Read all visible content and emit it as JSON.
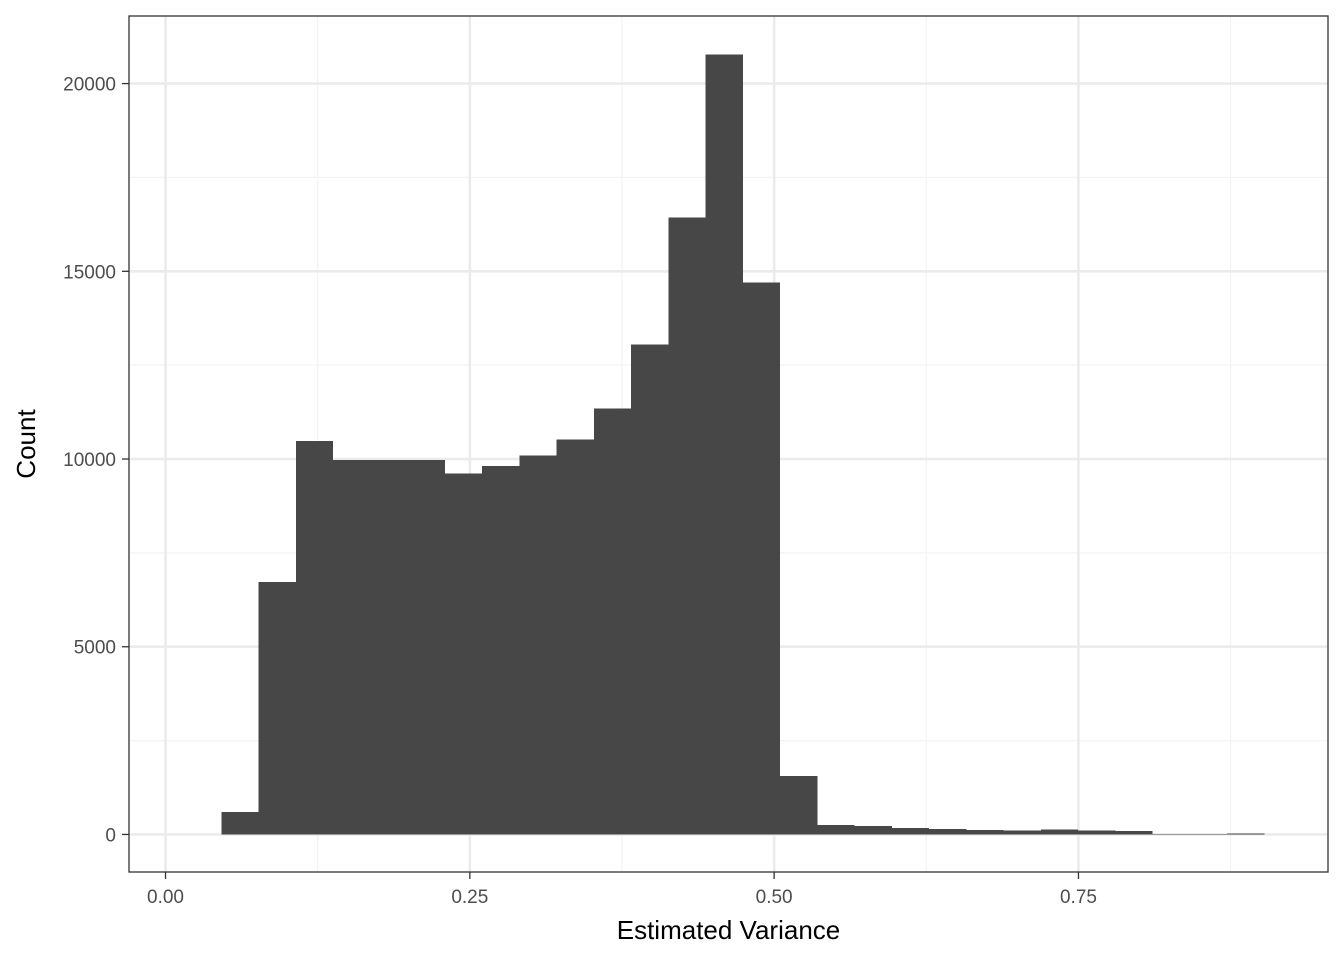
{
  "chart_data": {
    "type": "bar",
    "subtype": "histogram",
    "title": "",
    "xlabel": "Estimated Variance",
    "ylabel": "Count",
    "xlim": [
      -0.03,
      0.955
    ],
    "ylim": [
      -1000,
      21800
    ],
    "x_ticks": [
      {
        "value": 0.0,
        "label": "0.00"
      },
      {
        "value": 0.25,
        "label": "0.25"
      },
      {
        "value": 0.5,
        "label": "0.50"
      },
      {
        "value": 0.75,
        "label": "0.75"
      }
    ],
    "y_ticks": [
      {
        "value": 0,
        "label": "0"
      },
      {
        "value": 5000,
        "label": "5000"
      },
      {
        "value": 10000,
        "label": "10000"
      },
      {
        "value": 15000,
        "label": "15000"
      },
      {
        "value": 20000,
        "label": "20000"
      }
    ],
    "x_minor_ticks": [
      0.125,
      0.375,
      0.625,
      0.875
    ],
    "y_minor_ticks": [
      2500,
      7500,
      12500,
      17500
    ],
    "bin_width": 0.0306,
    "bins": [
      {
        "x0": -0.0153,
        "x1": 0.0153,
        "count": 0
      },
      {
        "x0": 0.0153,
        "x1": 0.0459,
        "count": 5
      },
      {
        "x0": 0.0459,
        "x1": 0.0765,
        "count": 600
      },
      {
        "x0": 0.0765,
        "x1": 0.1071,
        "count": 6720
      },
      {
        "x0": 0.1071,
        "x1": 0.1377,
        "count": 10480
      },
      {
        "x0": 0.1377,
        "x1": 0.1683,
        "count": 9980
      },
      {
        "x0": 0.1683,
        "x1": 0.1989,
        "count": 9980
      },
      {
        "x0": 0.1989,
        "x1": 0.2295,
        "count": 9980
      },
      {
        "x0": 0.2295,
        "x1": 0.2601,
        "count": 9620
      },
      {
        "x0": 0.2601,
        "x1": 0.2907,
        "count": 9820
      },
      {
        "x0": 0.2907,
        "x1": 0.3213,
        "count": 10100
      },
      {
        "x0": 0.3213,
        "x1": 0.3519,
        "count": 10520
      },
      {
        "x0": 0.3519,
        "x1": 0.3825,
        "count": 11350
      },
      {
        "x0": 0.3825,
        "x1": 0.4131,
        "count": 13050
      },
      {
        "x0": 0.4131,
        "x1": 0.4437,
        "count": 16430
      },
      {
        "x0": 0.4437,
        "x1": 0.4743,
        "count": 20770
      },
      {
        "x0": 0.4743,
        "x1": 0.5049,
        "count": 14700
      },
      {
        "x0": 0.5049,
        "x1": 0.5355,
        "count": 1560
      },
      {
        "x0": 0.5355,
        "x1": 0.5661,
        "count": 250
      },
      {
        "x0": 0.5661,
        "x1": 0.5967,
        "count": 220
      },
      {
        "x0": 0.5967,
        "x1": 0.6273,
        "count": 170
      },
      {
        "x0": 0.6273,
        "x1": 0.6579,
        "count": 140
      },
      {
        "x0": 0.6579,
        "x1": 0.6885,
        "count": 120
      },
      {
        "x0": 0.6885,
        "x1": 0.7191,
        "count": 110
      },
      {
        "x0": 0.7191,
        "x1": 0.7497,
        "count": 130
      },
      {
        "x0": 0.7497,
        "x1": 0.7803,
        "count": 110
      },
      {
        "x0": 0.7803,
        "x1": 0.8109,
        "count": 90
      },
      {
        "x0": 0.8109,
        "x1": 0.8415,
        "count": 10
      },
      {
        "x0": 0.8415,
        "x1": 0.8721,
        "count": 10
      },
      {
        "x0": 0.8721,
        "x1": 0.9027,
        "count": 20
      },
      {
        "x0": 0.9027,
        "x1": 0.9333,
        "count": 5
      }
    ],
    "bar_color": "#474747",
    "grid": true,
    "legend": "none",
    "theme": "bw"
  },
  "colors": {
    "background": "#ffffff",
    "panel_border": "#333333",
    "grid_major": "#ebebeb",
    "grid_minor": "#f3f3f3",
    "tick_mark": "#333333"
  }
}
